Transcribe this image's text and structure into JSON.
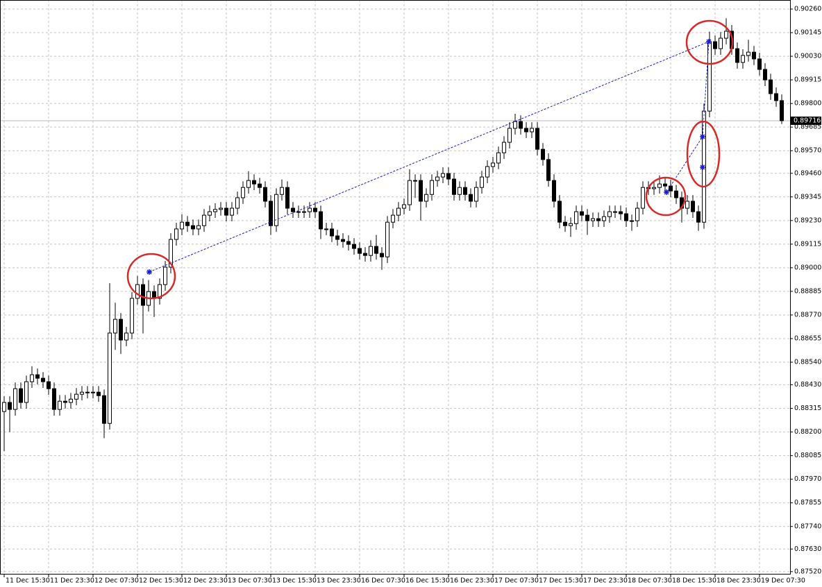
{
  "chart_data": {
    "type": "candlestick",
    "categories": [
      "11 Dec 15:30",
      null,
      null,
      null,
      null,
      null,
      null,
      null,
      "11 Dec 23:30",
      null,
      null,
      null,
      null,
      null,
      null,
      null,
      "12 Dec 07:30",
      null,
      null,
      null,
      null,
      null,
      null,
      null,
      "12 Dec 15:30",
      null,
      null,
      null,
      null,
      null,
      null,
      null,
      "12 Dec 23:30",
      null,
      null,
      null,
      null,
      null,
      null,
      null,
      "13 Dec 07:30",
      null,
      null,
      null,
      null,
      null,
      null,
      null,
      "13 Dec 15:30",
      null,
      null,
      null,
      null,
      null,
      null,
      null,
      "13 Dec 23:30",
      null,
      null,
      null,
      null,
      null,
      null,
      null,
      "16 Dec 07:30",
      null,
      null,
      null,
      null,
      null,
      null,
      null,
      "16 Dec 15:30",
      null,
      null,
      null,
      null,
      null,
      null,
      null,
      "16 Dec 23:30",
      null,
      null,
      null,
      null,
      null,
      null,
      null,
      "17 Dec 07:30",
      null,
      null,
      null,
      null,
      null,
      null,
      null,
      "17 Dec 15:30",
      null,
      null,
      null,
      null,
      null,
      null,
      null,
      "17 Dec 23:30",
      null,
      null,
      null,
      null,
      null,
      null,
      null,
      "18 Dec 07:30",
      null,
      null,
      null,
      null,
      null,
      null,
      null,
      "18 Dec 15:30",
      null,
      null,
      null,
      null,
      null,
      null,
      null,
      "18 Dec 23:30",
      null,
      null,
      null,
      null,
      null,
      null,
      null,
      "19 Dec 07:30",
      null,
      null,
      null,
      null
    ],
    "open": [
      0.883,
      0.88344,
      0.8831,
      0.88411,
      0.88344,
      0.88445,
      0.88479,
      0.88462,
      0.88445,
      0.88411,
      0.8831,
      0.8835,
      0.88344,
      0.8836,
      0.88384,
      0.88394,
      0.88394,
      0.88394,
      0.88377,
      0.88242,
      0.88682,
      0.88749,
      0.88648,
      0.88682,
      0.88851,
      0.88918,
      0.88817,
      0.88884,
      0.88851,
      0.88918,
      0.89003,
      0.89138,
      0.89189,
      0.89222,
      0.89205,
      0.89189,
      0.89205,
      0.89256,
      0.89273,
      0.89284,
      0.8929,
      0.89256,
      0.8929,
      0.89341,
      0.89391,
      0.89425,
      0.89408,
      0.89391,
      0.89324,
      0.89205,
      0.89357,
      0.89391,
      0.8929,
      0.89273,
      0.89273,
      0.89273,
      0.8929,
      0.89273,
      0.89189,
      0.89189,
      0.89155,
      0.89138,
      0.89128,
      0.89114,
      0.89094,
      0.8907,
      0.8906,
      0.89104,
      0.8907,
      0.89053,
      0.89222,
      0.89256,
      0.8929,
      0.89307,
      0.89425,
      0.89425,
      0.89324,
      0.89357,
      0.89425,
      0.89442,
      0.89459,
      0.89432,
      0.89357,
      0.89391,
      0.89357,
      0.89324,
      0.89391,
      0.89442,
      0.89493,
      0.8951,
      0.8956,
      0.89611,
      0.89679,
      0.89712,
      0.89679,
      0.89662,
      0.89679,
      0.89577,
      0.89527,
      0.89425,
      0.89324,
      0.89222,
      0.89205,
      0.89215,
      0.89273,
      0.89256,
      0.89229,
      0.89239,
      0.89229,
      0.89249,
      0.89273,
      0.89273,
      0.89263,
      0.89229,
      0.89229,
      0.8929,
      0.89391,
      0.89385,
      0.89391,
      0.89408,
      0.89398,
      0.89374,
      0.89341,
      0.8929,
      0.89324,
      0.89273,
      0.89222,
      0.89763,
      0.90101,
      0.90067,
      0.90118,
      0.90152,
      0.90067,
      0.9,
      0.90034,
      0.9005,
      0.90017,
      0.89966,
      0.89915,
      0.89848,
      0.89814
    ],
    "high": [
      0.88374,
      0.88374,
      0.88441,
      0.88441,
      0.88475,
      0.8852,
      0.88509,
      0.88492,
      0.88475,
      0.88441,
      0.8838,
      0.8838,
      0.8839,
      0.88414,
      0.88424,
      0.88424,
      0.88424,
      0.88424,
      0.88407,
      0.88925,
      0.8883,
      0.88779,
      0.88712,
      0.88881,
      0.8896,
      0.88948,
      0.8894,
      0.88914,
      0.88948,
      0.89033,
      0.89168,
      0.89219,
      0.8926,
      0.89252,
      0.89235,
      0.89235,
      0.89286,
      0.89303,
      0.89314,
      0.8932,
      0.8932,
      0.8932,
      0.89371,
      0.89421,
      0.8947,
      0.89455,
      0.89438,
      0.89421,
      0.89354,
      0.89387,
      0.8943,
      0.89421,
      0.8932,
      0.89303,
      0.89303,
      0.8932,
      0.8932,
      0.89303,
      0.89219,
      0.89219,
      0.89185,
      0.89168,
      0.89158,
      0.89144,
      0.89124,
      0.891,
      0.89134,
      0.8916,
      0.891,
      0.89252,
      0.89286,
      0.8932,
      0.89337,
      0.8948,
      0.89455,
      0.89455,
      0.89387,
      0.89455,
      0.89472,
      0.89489,
      0.89489,
      0.89462,
      0.89421,
      0.89421,
      0.89387,
      0.89421,
      0.89472,
      0.89523,
      0.8954,
      0.8959,
      0.89641,
      0.89709,
      0.8975,
      0.89742,
      0.89709,
      0.89709,
      0.89709,
      0.89607,
      0.89557,
      0.89455,
      0.89354,
      0.89252,
      0.89245,
      0.89303,
      0.89303,
      0.89286,
      0.89269,
      0.89269,
      0.89279,
      0.89303,
      0.89303,
      0.89303,
      0.89293,
      0.89259,
      0.8932,
      0.89421,
      0.89421,
      0.89421,
      0.8945,
      0.89438,
      0.89428,
      0.89404,
      0.89371,
      0.89354,
      0.89354,
      0.89303,
      0.898,
      0.9015,
      0.90131,
      0.90148,
      0.90215,
      0.90182,
      0.90097,
      0.90064,
      0.9011,
      0.9008,
      0.90047,
      0.89996,
      0.89945,
      0.89878,
      0.89844
    ],
    "low": [
      0.88107,
      0.882,
      0.8828,
      0.88314,
      0.88314,
      0.88415,
      0.88432,
      0.88415,
      0.88381,
      0.8828,
      0.8828,
      0.88314,
      0.88314,
      0.8833,
      0.88354,
      0.88364,
      0.88364,
      0.88347,
      0.8817,
      0.88212,
      0.886,
      0.8858,
      0.88618,
      0.88652,
      0.88821,
      0.8868,
      0.88787,
      0.8876,
      0.88821,
      0.88888,
      0.88973,
      0.89108,
      0.89159,
      0.89175,
      0.89159,
      0.89159,
      0.89175,
      0.89226,
      0.89243,
      0.89254,
      0.89226,
      0.89226,
      0.8926,
      0.89311,
      0.89361,
      0.89378,
      0.89361,
      0.89294,
      0.8916,
      0.89175,
      0.89327,
      0.8926,
      0.89243,
      0.89243,
      0.89243,
      0.89243,
      0.89243,
      0.8914,
      0.89159,
      0.89125,
      0.89108,
      0.89098,
      0.89084,
      0.89064,
      0.8904,
      0.8903,
      0.8903,
      0.8904,
      0.8899,
      0.89023,
      0.89192,
      0.89226,
      0.8926,
      0.89277,
      0.8934,
      0.8923,
      0.89294,
      0.89327,
      0.89395,
      0.89412,
      0.89402,
      0.89327,
      0.89327,
      0.89327,
      0.89294,
      0.89294,
      0.89361,
      0.89412,
      0.89463,
      0.8948,
      0.8953,
      0.89581,
      0.89649,
      0.89649,
      0.89632,
      0.89632,
      0.89547,
      0.89497,
      0.89395,
      0.89294,
      0.89192,
      0.89175,
      0.8915,
      0.89185,
      0.89226,
      0.8916,
      0.89199,
      0.89199,
      0.89199,
      0.89219,
      0.89243,
      0.89233,
      0.89199,
      0.8918,
      0.89199,
      0.8926,
      0.89355,
      0.89355,
      0.89361,
      0.89368,
      0.89344,
      0.89311,
      0.8922,
      0.8926,
      0.89243,
      0.8918,
      0.8919,
      0.89733,
      0.90037,
      0.90037,
      0.90088,
      0.90037,
      0.8997,
      0.8997,
      0.90004,
      0.89987,
      0.89936,
      0.89885,
      0.89818,
      0.89784,
      0.897
    ],
    "close": [
      0.88344,
      0.8831,
      0.88411,
      0.88344,
      0.88445,
      0.88479,
      0.88462,
      0.88445,
      0.88411,
      0.8831,
      0.8835,
      0.88344,
      0.8836,
      0.88384,
      0.88394,
      0.88394,
      0.88394,
      0.88377,
      0.88242,
      0.88682,
      0.88749,
      0.88648,
      0.88682,
      0.88851,
      0.88918,
      0.88817,
      0.88884,
      0.88851,
      0.88918,
      0.89003,
      0.89138,
      0.89189,
      0.89222,
      0.89205,
      0.89189,
      0.89205,
      0.89256,
      0.89273,
      0.89284,
      0.8929,
      0.89256,
      0.8929,
      0.89341,
      0.89391,
      0.89425,
      0.89408,
      0.89391,
      0.89324,
      0.89205,
      0.89357,
      0.89391,
      0.8929,
      0.89273,
      0.89273,
      0.89273,
      0.8929,
      0.89273,
      0.89189,
      0.89189,
      0.89155,
      0.89138,
      0.89128,
      0.89114,
      0.89094,
      0.8907,
      0.8906,
      0.89104,
      0.8907,
      0.89053,
      0.89222,
      0.89256,
      0.8929,
      0.89307,
      0.89425,
      0.89425,
      0.89324,
      0.89357,
      0.89425,
      0.89442,
      0.89459,
      0.89432,
      0.89357,
      0.89391,
      0.89357,
      0.89324,
      0.89391,
      0.89442,
      0.89493,
      0.8951,
      0.8956,
      0.89611,
      0.89679,
      0.89712,
      0.89679,
      0.89662,
      0.89679,
      0.89577,
      0.89527,
      0.89425,
      0.89324,
      0.89222,
      0.89205,
      0.89215,
      0.89273,
      0.89256,
      0.89229,
      0.89239,
      0.89229,
      0.89249,
      0.89273,
      0.89273,
      0.89263,
      0.89229,
      0.89229,
      0.8929,
      0.89391,
      0.89385,
      0.89391,
      0.89408,
      0.89398,
      0.89374,
      0.89341,
      0.8929,
      0.89324,
      0.89273,
      0.89222,
      0.89763,
      0.90101,
      0.90067,
      0.90118,
      0.90152,
      0.90067,
      0.9,
      0.90034,
      0.9005,
      0.90017,
      0.89966,
      0.89915,
      0.89848,
      0.89814,
      0.89716
    ],
    "up_color": "#ffffff",
    "down_color": "#000000",
    "ylim": [
      0.87506,
      0.90304
    ],
    "yticks": [
      {
        "value": 0.9026,
        "label": "0.90260"
      },
      {
        "value": 0.90145,
        "label": "0.90145"
      },
      {
        "value": 0.9003,
        "label": "0.90030"
      },
      {
        "value": 0.89915,
        "label": "0.89915"
      },
      {
        "value": 0.898,
        "label": "0.89800"
      },
      {
        "value": 0.89685,
        "label": "0.89685"
      },
      {
        "value": 0.8957,
        "label": "0.89570"
      },
      {
        "value": 0.8946,
        "label": "0.89460"
      },
      {
        "value": 0.89345,
        "label": "0.89345"
      },
      {
        "value": 0.8923,
        "label": "0.89230"
      },
      {
        "value": 0.89115,
        "label": "0.89115"
      },
      {
        "value": 0.89,
        "label": "0.89000"
      },
      {
        "value": 0.88885,
        "label": "0.88885"
      },
      {
        "value": 0.8877,
        "label": "0.88770"
      },
      {
        "value": 0.88655,
        "label": "0.88655"
      },
      {
        "value": 0.8854,
        "label": "0.88540"
      },
      {
        "value": 0.8843,
        "label": "0.88430"
      },
      {
        "value": 0.88315,
        "label": "0.88315"
      },
      {
        "value": 0.882,
        "label": "0.88200"
      },
      {
        "value": 0.88085,
        "label": "0.88085"
      },
      {
        "value": 0.8797,
        "label": "0.87970"
      },
      {
        "value": 0.87855,
        "label": "0.87855"
      },
      {
        "value": 0.8774,
        "label": "0.87740"
      },
      {
        "value": 0.8763,
        "label": "0.87630"
      },
      {
        "value": 0.8752,
        "label": "0.87520"
      }
    ],
    "grid": true,
    "current_price": 0.89716
  }
}
